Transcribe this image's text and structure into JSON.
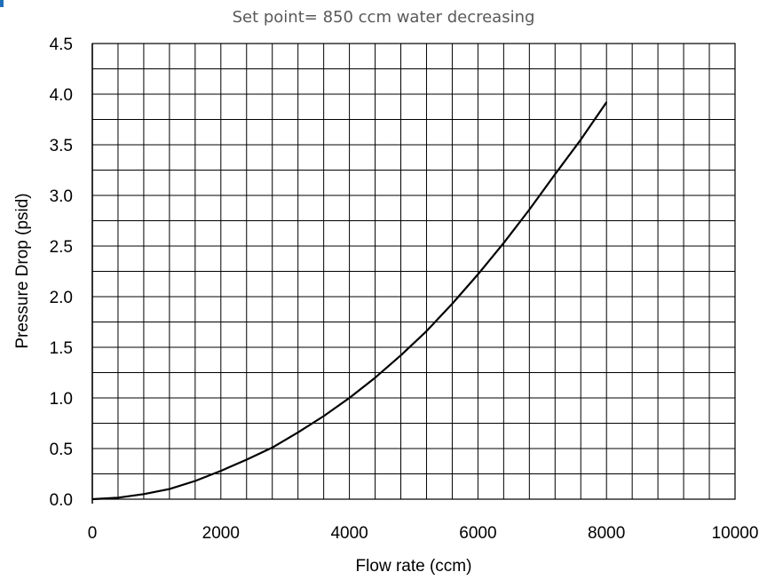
{
  "colors": {
    "accent": "#1e6fb8",
    "curve": "#000000",
    "grid": "#000000",
    "title": "#595959"
  },
  "chart_data": {
    "type": "line",
    "title": "Set point= 850 ccm water decreasing",
    "xlabel": "Flow rate (ccm)",
    "ylabel": "Pressure Drop (psid)",
    "xlim": [
      0,
      10000
    ],
    "ylim": [
      0,
      4.5
    ],
    "xticks": [
      0,
      2000,
      4000,
      6000,
      8000,
      10000
    ],
    "xtick_labels": [
      "0",
      "2000",
      "4000",
      "6000",
      "8000",
      "10000"
    ],
    "yticks": [
      0,
      0.5,
      1.0,
      1.5,
      2.0,
      2.5,
      3.0,
      3.5,
      4.0,
      4.5
    ],
    "ytick_labels": [
      "0.0",
      "0.5",
      "1.0",
      "1.5",
      "2.0",
      "2.5",
      "3.0",
      "3.5",
      "4.0",
      "4.5"
    ],
    "grid": true,
    "x_minor_step": 400,
    "y_minor_step": 0.25,
    "series": [
      {
        "x": [
          0,
          400,
          800,
          1200,
          1600,
          2000,
          2400,
          2800,
          3200,
          3600,
          4000,
          4400,
          4800,
          5200,
          5600,
          6000,
          6400,
          6800,
          7200,
          7600,
          8000
        ],
        "values": [
          0.0,
          0.015,
          0.05,
          0.1,
          0.18,
          0.28,
          0.39,
          0.51,
          0.66,
          0.82,
          1.0,
          1.2,
          1.42,
          1.66,
          1.93,
          2.22,
          2.53,
          2.86,
          3.21,
          3.55,
          3.92
        ]
      }
    ]
  }
}
